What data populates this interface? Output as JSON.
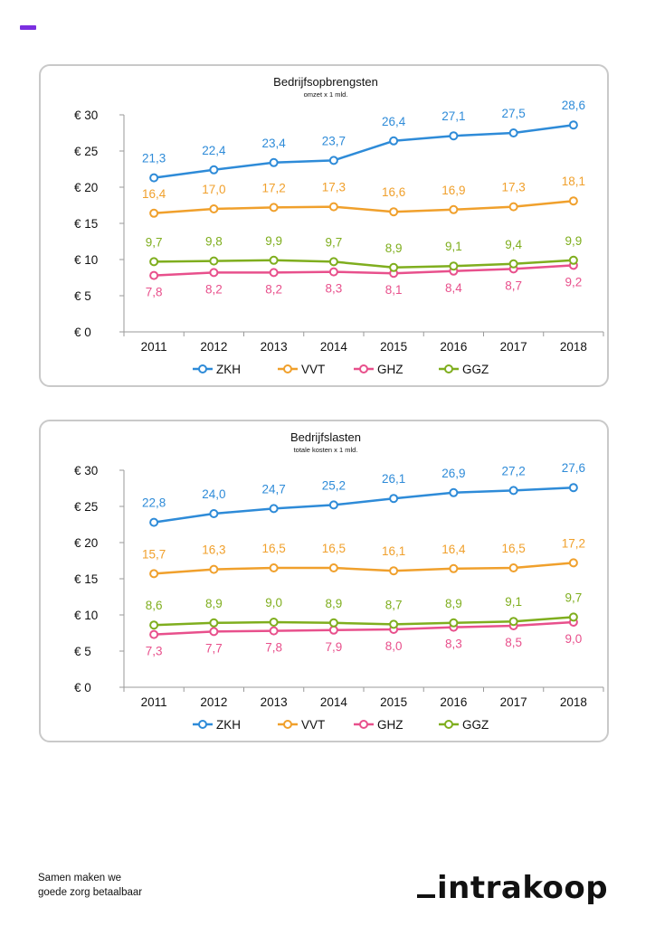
{
  "colors": {
    "accent": "#7b2fe0",
    "ZKH": "#2E8BD8",
    "VVT": "#F0A02C",
    "GHZ": "#E8508C",
    "GGZ": "#7FAE1E"
  },
  "chart_data": [
    {
      "type": "line",
      "title": "Bedrijfsopbrengsten",
      "subtitle": "omzet  x 1 mld.",
      "categories": [
        "2011",
        "2012",
        "2013",
        "2014",
        "2015",
        "2016",
        "2017",
        "2018"
      ],
      "y_ticks": [
        "€ 0",
        "€ 5",
        "€ 10",
        "€ 15",
        "€ 20",
        "€ 25",
        "€ 30"
      ],
      "ylim": [
        0,
        30
      ],
      "grid": false,
      "legend_position": "bottom",
      "series": [
        {
          "name": "ZKH",
          "values": [
            21.3,
            22.4,
            23.4,
            23.7,
            26.4,
            27.1,
            27.5,
            28.6
          ],
          "labels": [
            "21,3",
            "22,4",
            "23,4",
            "23,7",
            "26,4",
            "27,1",
            "27,5",
            "28,6"
          ]
        },
        {
          "name": "VVT",
          "values": [
            16.4,
            17.0,
            17.2,
            17.3,
            16.6,
            16.9,
            17.3,
            18.1
          ],
          "labels": [
            "16,4",
            "17,0",
            "17,2",
            "17,3",
            "16,6",
            "16,9",
            "17,3",
            "18,1"
          ]
        },
        {
          "name": "GHZ",
          "values": [
            7.8,
            8.2,
            8.2,
            8.3,
            8.1,
            8.4,
            8.7,
            9.2
          ],
          "labels": [
            "7,8",
            "8,2",
            "8,2",
            "8,3",
            "8,1",
            "8,4",
            "8,7",
            "9,2"
          ]
        },
        {
          "name": "GGZ",
          "values": [
            9.7,
            9.8,
            9.9,
            9.7,
            8.9,
            9.1,
            9.4,
            9.9
          ],
          "labels": [
            "9,7",
            "9,8",
            "9,9",
            "9,7",
            "8,9",
            "9,1",
            "9,4",
            "9,9"
          ]
        }
      ]
    },
    {
      "type": "line",
      "title": "Bedrijfslasten",
      "subtitle": "totale kosten x 1 mld.",
      "categories": [
        "2011",
        "2012",
        "2013",
        "2014",
        "2015",
        "2016",
        "2017",
        "2018"
      ],
      "y_ticks": [
        "€ 0",
        "€ 5",
        "€ 10",
        "€ 15",
        "€ 20",
        "€ 25",
        "€ 30"
      ],
      "ylim": [
        0,
        30
      ],
      "grid": false,
      "legend_position": "bottom",
      "series": [
        {
          "name": "ZKH",
          "values": [
            22.8,
            24.0,
            24.7,
            25.2,
            26.1,
            26.9,
            27.2,
            27.6
          ],
          "labels": [
            "22,8",
            "24,0",
            "24,7",
            "25,2",
            "26,1",
            "26,9",
            "27,2",
            "27,6"
          ]
        },
        {
          "name": "VVT",
          "values": [
            15.7,
            16.3,
            16.5,
            16.5,
            16.1,
            16.4,
            16.5,
            17.2
          ],
          "labels": [
            "15,7",
            "16,3",
            "16,5",
            "16,5",
            "16,1",
            "16,4",
            "16,5",
            "17,2"
          ]
        },
        {
          "name": "GHZ",
          "values": [
            7.3,
            7.7,
            7.8,
            7.9,
            8.0,
            8.3,
            8.5,
            9.0
          ],
          "labels": [
            "7,3",
            "7,7",
            "7,8",
            "7,9",
            "8,0",
            "8,3",
            "8,5",
            "9,0"
          ]
        },
        {
          "name": "GGZ",
          "values": [
            8.6,
            8.9,
            9.0,
            8.9,
            8.7,
            8.9,
            9.1,
            9.7
          ],
          "labels": [
            "8,6",
            "8,9",
            "9,0",
            "8,9",
            "8,7",
            "8,9",
            "9,1",
            "9,7"
          ]
        }
      ]
    }
  ],
  "footer": {
    "tagline_line1": "Samen maken we",
    "tagline_line2": "goede zorg betaalbaar",
    "brand": "intrakoop"
  }
}
